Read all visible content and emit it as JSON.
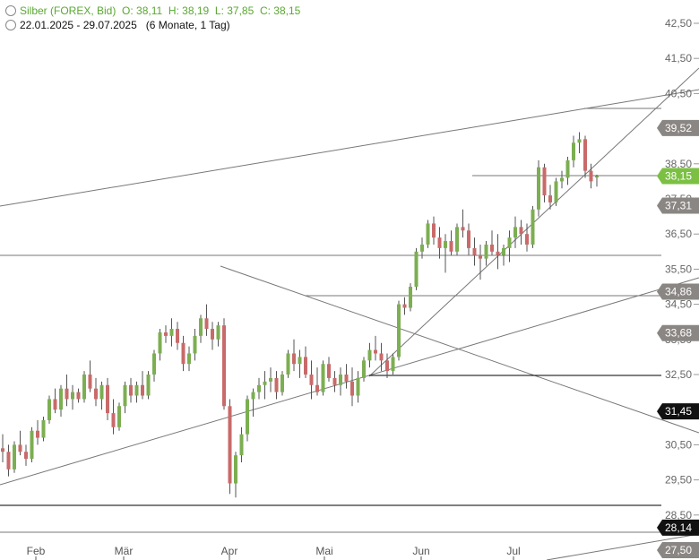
{
  "header": {
    "line1": {
      "instrument": "Silber (FOREX, Bid)",
      "open": "O: 38,11",
      "high": "H: 38,19",
      "low": "L: 37,85",
      "close": "C: 38,15"
    },
    "line2": {
      "range": "22.01.2025 - 29.07.2025",
      "period": "(6 Monate, 1 Tag)"
    },
    "icon": "info-circle-icon"
  },
  "chart_data": {
    "type": "candlestick",
    "title": "Silber (FOREX, Bid)",
    "y_ticks": [
      "42,50",
      "41,50",
      "40,50",
      "38,50",
      "37,50",
      "36,50",
      "35,50",
      "34,50",
      "33,50",
      "32,50",
      "30,50",
      "29,50",
      "28,50"
    ],
    "x_ticks": [
      "Feb",
      "Mär",
      "Apr",
      "Mai",
      "Jun",
      "Jul"
    ],
    "ylim": [
      27.5,
      42.5
    ],
    "current_price": "38,15",
    "level_labels": [
      {
        "text": "39,52",
        "value": 39.52,
        "style": "gray"
      },
      {
        "text": "38,15",
        "value": 38.15,
        "style": "green"
      },
      {
        "text": "37,31",
        "value": 37.31,
        "style": "gray"
      },
      {
        "text": "34,86",
        "value": 34.86,
        "style": "gray"
      },
      {
        "text": "33,68",
        "value": 33.68,
        "style": "gray"
      },
      {
        "text": "31,45",
        "value": 31.45,
        "style": "black"
      },
      {
        "text": "28,14",
        "value": 28.14,
        "style": "black"
      },
      {
        "text": "27,50",
        "value": 27.5,
        "style": "gray"
      }
    ],
    "colors": {
      "up": "#7cae52",
      "down": "#c96a6a",
      "wick": "#555555",
      "lines": "#777777"
    },
    "ohlc": [
      [
        30.4,
        30.8,
        30.0,
        30.3
      ],
      [
        30.3,
        30.5,
        29.6,
        29.8
      ],
      [
        29.8,
        30.6,
        29.7,
        30.5
      ],
      [
        30.5,
        30.9,
        30.2,
        30.3
      ],
      [
        30.3,
        30.5,
        29.9,
        30.1
      ],
      [
        30.1,
        31.0,
        30.0,
        30.9
      ],
      [
        30.9,
        31.2,
        30.5,
        30.7
      ],
      [
        30.7,
        31.3,
        30.6,
        31.2
      ],
      [
        31.2,
        31.9,
        31.1,
        31.8
      ],
      [
        31.8,
        32.1,
        31.4,
        31.5
      ],
      [
        31.5,
        32.2,
        31.3,
        32.1
      ],
      [
        32.1,
        32.5,
        31.6,
        31.8
      ],
      [
        31.8,
        32.2,
        31.5,
        32.0
      ],
      [
        32.0,
        32.1,
        31.7,
        31.8
      ],
      [
        31.8,
        32.6,
        31.7,
        32.5
      ],
      [
        32.5,
        32.9,
        32.0,
        32.1
      ],
      [
        32.1,
        32.4,
        31.6,
        31.8
      ],
      [
        31.8,
        32.3,
        31.5,
        32.2
      ],
      [
        32.2,
        32.4,
        31.2,
        31.4
      ],
      [
        31.4,
        31.8,
        30.8,
        31.0
      ],
      [
        31.0,
        31.7,
        30.9,
        31.6
      ],
      [
        31.6,
        32.3,
        31.4,
        32.2
      ],
      [
        32.2,
        32.4,
        31.7,
        31.9
      ],
      [
        31.9,
        32.3,
        31.7,
        32.2
      ],
      [
        32.2,
        32.6,
        31.8,
        31.9
      ],
      [
        31.9,
        32.6,
        31.8,
        32.5
      ],
      [
        32.5,
        33.2,
        32.3,
        33.1
      ],
      [
        33.1,
        33.8,
        32.9,
        33.7
      ],
      [
        33.7,
        33.9,
        33.4,
        33.6
      ],
      [
        33.6,
        34.1,
        33.3,
        33.8
      ],
      [
        33.8,
        34.0,
        33.2,
        33.4
      ],
      [
        33.4,
        33.6,
        32.6,
        32.8
      ],
      [
        32.8,
        33.3,
        32.6,
        33.1
      ],
      [
        33.1,
        33.8,
        32.9,
        33.6
      ],
      [
        33.6,
        34.2,
        33.4,
        34.1
      ],
      [
        34.1,
        34.5,
        33.6,
        33.8
      ],
      [
        33.8,
        34.0,
        33.2,
        33.5
      ],
      [
        33.5,
        34.0,
        33.3,
        33.9
      ],
      [
        33.9,
        34.1,
        31.5,
        31.6
      ],
      [
        31.6,
        31.8,
        29.1,
        29.4
      ],
      [
        29.4,
        30.3,
        29.0,
        30.2
      ],
      [
        30.2,
        31.0,
        30.0,
        30.8
      ],
      [
        30.8,
        31.9,
        30.6,
        31.8
      ],
      [
        31.8,
        32.1,
        31.3,
        32.0
      ],
      [
        32.0,
        32.4,
        31.8,
        32.2
      ],
      [
        32.2,
        32.6,
        31.8,
        32.3
      ],
      [
        32.3,
        32.7,
        32.0,
        32.4
      ],
      [
        32.4,
        32.6,
        31.8,
        32.0
      ],
      [
        32.0,
        32.6,
        31.9,
        32.5
      ],
      [
        32.5,
        33.2,
        32.4,
        33.1
      ],
      [
        33.1,
        33.5,
        32.6,
        32.8
      ],
      [
        32.8,
        33.2,
        32.4,
        33.0
      ],
      [
        33.0,
        33.3,
        32.4,
        32.5
      ],
      [
        32.5,
        32.9,
        31.8,
        32.2
      ],
      [
        32.2,
        32.7,
        31.9,
        32.0
      ],
      [
        32.0,
        32.9,
        31.9,
        32.8
      ],
      [
        32.8,
        33.0,
        32.3,
        32.4
      ],
      [
        32.4,
        32.6,
        32.0,
        32.2
      ],
      [
        32.2,
        32.7,
        31.9,
        32.5
      ],
      [
        32.5,
        32.8,
        32.1,
        32.3
      ],
      [
        32.3,
        32.7,
        31.6,
        31.9
      ],
      [
        31.9,
        32.6,
        31.7,
        32.4
      ],
      [
        32.4,
        33.0,
        32.3,
        32.9
      ],
      [
        32.9,
        33.4,
        32.7,
        33.2
      ],
      [
        33.2,
        33.6,
        32.9,
        33.1
      ],
      [
        33.1,
        33.4,
        32.6,
        32.9
      ],
      [
        32.9,
        33.1,
        32.4,
        32.6
      ],
      [
        32.6,
        33.1,
        32.5,
        33.0
      ],
      [
        33.0,
        34.6,
        32.9,
        34.5
      ],
      [
        34.5,
        34.7,
        34.2,
        34.4
      ],
      [
        34.4,
        35.1,
        34.3,
        35.0
      ],
      [
        35.0,
        36.1,
        34.9,
        36.0
      ],
      [
        36.0,
        36.4,
        35.8,
        36.2
      ],
      [
        36.2,
        36.9,
        36.1,
        36.8
      ],
      [
        36.8,
        37.0,
        36.2,
        36.4
      ],
      [
        36.4,
        36.7,
        35.8,
        36.1
      ],
      [
        36.1,
        36.5,
        35.4,
        36.3
      ],
      [
        36.3,
        36.6,
        35.9,
        36.0
      ],
      [
        36.0,
        36.8,
        35.9,
        36.7
      ],
      [
        36.7,
        37.2,
        36.4,
        36.6
      ],
      [
        36.6,
        36.8,
        35.9,
        36.1
      ],
      [
        36.1,
        36.4,
        35.6,
        35.9
      ],
      [
        35.9,
        36.2,
        35.2,
        35.8
      ],
      [
        35.8,
        36.3,
        35.6,
        36.2
      ],
      [
        36.2,
        36.6,
        35.9,
        36.0
      ],
      [
        36.0,
        36.5,
        35.5,
        35.9
      ],
      [
        35.9,
        36.2,
        35.6,
        36.1
      ],
      [
        36.1,
        36.6,
        35.7,
        36.4
      ],
      [
        36.4,
        37.0,
        36.1,
        36.7
      ],
      [
        36.7,
        36.9,
        36.2,
        36.5
      ],
      [
        36.5,
        36.8,
        36.0,
        36.2
      ],
      [
        36.2,
        37.3,
        36.1,
        37.2
      ],
      [
        37.2,
        38.6,
        37.0,
        38.4
      ],
      [
        38.4,
        38.5,
        37.4,
        37.6
      ],
      [
        37.6,
        37.9,
        37.2,
        37.4
      ],
      [
        37.4,
        38.1,
        37.3,
        38.0
      ],
      [
        38.0,
        38.3,
        37.8,
        38.1
      ],
      [
        38.1,
        38.7,
        37.9,
        38.6
      ],
      [
        38.6,
        39.3,
        38.4,
        39.1
      ],
      [
        39.1,
        39.4,
        38.8,
        39.2
      ],
      [
        39.2,
        39.3,
        38.1,
        38.3
      ],
      [
        38.3,
        38.5,
        37.8,
        38.0
      ],
      [
        38.11,
        38.19,
        37.85,
        38.15
      ]
    ]
  }
}
